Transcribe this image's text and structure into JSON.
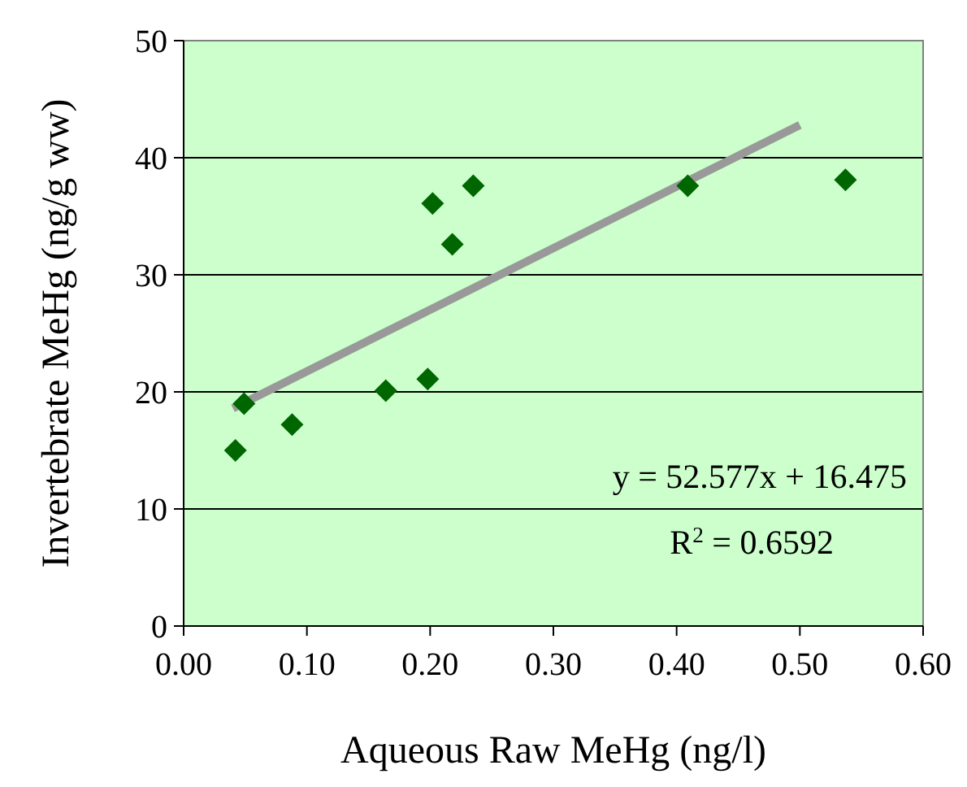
{
  "chart_data": {
    "type": "scatter",
    "xlabel": "Aqueous Raw MeHg (ng/l)",
    "ylabel": "Invertebrate MeHg (ng/g ww)",
    "xlim": [
      0,
      0.6
    ],
    "xticks": [
      {
        "value": 0,
        "label": "0.00"
      },
      {
        "value": 0.1,
        "label": "0.10"
      },
      {
        "value": 0.2,
        "label": "0.20"
      },
      {
        "value": 0.3,
        "label": "0.30"
      },
      {
        "value": 0.4,
        "label": "0.40"
      },
      {
        "value": 0.5,
        "label": "0.50"
      },
      {
        "value": 0.6,
        "label": "0.60"
      }
    ],
    "ylim": [
      0,
      50
    ],
    "yticks": [
      0,
      10,
      20,
      30,
      40,
      50
    ],
    "grid": "y",
    "series": [
      {
        "marker": "diamond",
        "color": "#006600",
        "x": [
          0.042,
          0.049,
          0.088,
          0.164,
          0.198,
          0.202,
          0.218,
          0.235,
          0.409,
          0.537
        ],
        "values": [
          15.0,
          19.0,
          17.2,
          20.1,
          21.1,
          36.1,
          32.6,
          37.6,
          37.6,
          38.1
        ]
      },
      {
        "type": "line",
        "color": "#999999",
        "x": [
          0.04,
          0.5
        ],
        "values": [
          18.6,
          42.8
        ]
      }
    ],
    "annotations": [
      "y = 52.577x + 16.475",
      "R$^{2}$ = 0.6592"
    ]
  }
}
